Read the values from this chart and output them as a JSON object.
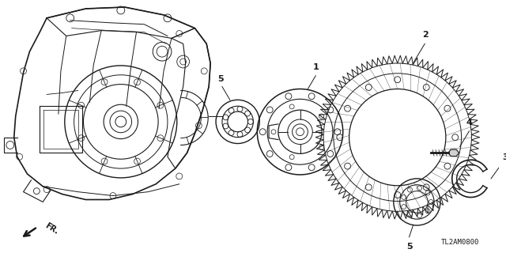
{
  "background_color": "#ffffff",
  "line_color": "#1a1a1a",
  "fig_width": 6.4,
  "fig_height": 3.2,
  "dpi": 100,
  "part_number_label": "TL2AM0800"
}
